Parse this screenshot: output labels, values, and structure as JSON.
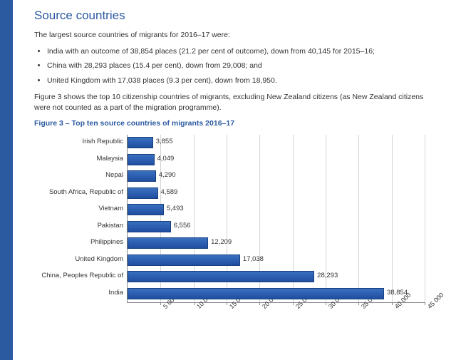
{
  "title": "Source countries",
  "intro": "The largest source countries of migrants for 2016–17 were:",
  "bullets": [
    "India with an outcome of 38,854 places (21.2 per cent of outcome), down from 40,145 for 2015–16;",
    "China with 28,293 places (15.4 per cent), down from 29,008; and",
    "United Kingdom with 17,038 places (9.3 per cent), down from 18,950."
  ],
  "caption": "Figure 3 shows the top 10 citizenship countries of migrants, excluding New Zealand citizens (as New Zealand citizens were not counted as a part of the migration programme).",
  "figure_title": "Figure 3 – Top ten source countries of migrants 2016–17",
  "chart": {
    "type": "bar-horizontal",
    "xlim": [
      0,
      45000
    ],
    "xtick_start": 5000,
    "xtick_step": 5000,
    "xtick_labels": [
      "5 000",
      "10 000",
      "15 000",
      "20 000",
      "25 000",
      "30 000",
      "35 000",
      "40 000",
      "45 000"
    ],
    "bar_color": "#2b5aa1",
    "grid_color": "#d4d4d4",
    "axis_color": "#888888",
    "background_color": "#ffffff",
    "label_fontsize": 9.5,
    "items": [
      {
        "label": "Irish Republic",
        "value": 3855,
        "value_label": "3,855"
      },
      {
        "label": "Malaysia",
        "value": 4049,
        "value_label": "4,049"
      },
      {
        "label": "Nepal",
        "value": 4290,
        "value_label": "4,290"
      },
      {
        "label": "South Africa, Republic of",
        "value": 4589,
        "value_label": "4,589"
      },
      {
        "label": "Vietnam",
        "value": 5493,
        "value_label": "5,493"
      },
      {
        "label": "Pakistan",
        "value": 6556,
        "value_label": "6,556"
      },
      {
        "label": "Philippines",
        "value": 12209,
        "value_label": "12,209"
      },
      {
        "label": "United Kingdom",
        "value": 17038,
        "value_label": "17,038"
      },
      {
        "label": "China, Peoples Republic of",
        "value": 28293,
        "value_label": "28,293"
      },
      {
        "label": "India",
        "value": 38854,
        "value_label": "38,854"
      }
    ]
  }
}
